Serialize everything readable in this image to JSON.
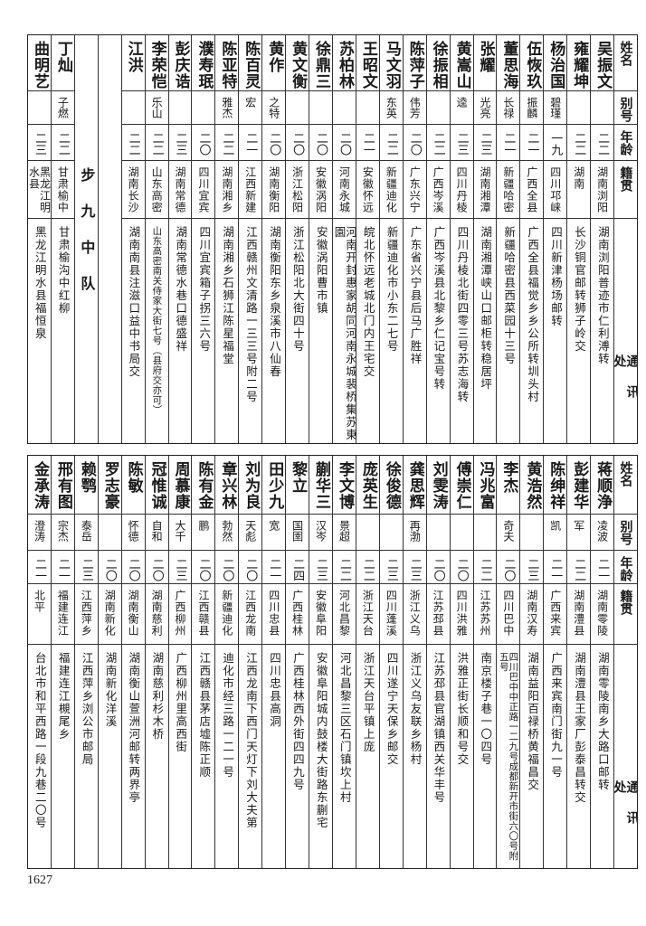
{
  "headers": {
    "name": "姓名",
    "alias": "别号",
    "age": "年龄",
    "native_place": "籍贯",
    "address": "通讯处"
  },
  "top_section": {
    "section_label": "步九中队",
    "people": [
      {
        "name": "吴振文",
        "alias": "",
        "age": "二二",
        "native_place": "湖南浏阳",
        "address": "湖南浏阳普迹市仁利溥转"
      },
      {
        "name": "雍耀坤",
        "alias": "",
        "age": "二二",
        "native_place": "湖南",
        "address": "长沙铜官邮转狮子岭交"
      },
      {
        "name": "杨治国",
        "alias": "碧瑾",
        "age": "一九",
        "native_place": "四川邛崃",
        "address": "四川新津杨场邮转"
      },
      {
        "name": "伍恢玖",
        "alias": "振麟",
        "age": "二一",
        "native_place": "广西全县",
        "address": "广西全县福觉乡乡公所转圳头村"
      },
      {
        "name": "董思海",
        "alias": "长禄",
        "age": "二一",
        "native_place": "新疆哈密",
        "address": "新疆哈密县西菜园十三号"
      },
      {
        "name": "张耀",
        "alias": "光亮",
        "age": "二三",
        "native_place": "湖南湘潭",
        "address": "湖南湘潭峡山口邮柜转稳居坪"
      },
      {
        "name": "黄嵩山",
        "alias": "逵",
        "age": "二三",
        "native_place": "四川丹棱",
        "address": "四川丹棱北街四零三号苏志海转"
      },
      {
        "name": "徐振相",
        "alias": "",
        "age": "二二",
        "native_place": "广西岑溪",
        "address": "广西岑溪县北黎乡仁记宝号转"
      },
      {
        "name": "陈萍子",
        "alias": "伟芳",
        "age": "二〇",
        "native_place": "广东兴宁",
        "address": "广东省兴宁县后马广胜祥"
      },
      {
        "name": "马文羽",
        "alias": "东英",
        "age": "二二",
        "native_place": "新疆迪化",
        "address": "新疆迪化市小东二七号"
      },
      {
        "name": "王昭文",
        "alias": "",
        "age": "二一",
        "native_place": "安徽怀远",
        "address": "皖北怀远老城北门内王宅交"
      },
      {
        "name": "苏柏林",
        "alias": "",
        "age": "二〇",
        "native_place": "河南永城",
        "address": "河南开封惠家胡同河南永城裴桥集苏東園"
      },
      {
        "name": "徐鼎三",
        "alias": "",
        "age": "二〇",
        "native_place": "安徽涡阳",
        "address": "安徽涡阳曹市镇"
      },
      {
        "name": "黄文衡",
        "alias": "",
        "age": "二〇",
        "native_place": "浙江松阳",
        "address": "浙江松阳北大街四十号"
      },
      {
        "name": "黄作",
        "alias": "之特",
        "age": "二〇",
        "native_place": "湖南衡阳",
        "address": "湖南衡阳东乡泉溪市八仙春"
      },
      {
        "name": "陈百灵",
        "alias": "宏",
        "age": "二一",
        "native_place": "江西新建",
        "address": "江西赣州文清路一三三号附二号"
      },
      {
        "name": "陈亚特",
        "alias": "雅杰",
        "age": "二二",
        "native_place": "湖南湘乡",
        "address": "湖南湘乡石狮江陈星福堂"
      },
      {
        "name": "濮寿珉",
        "alias": "",
        "age": "二〇",
        "native_place": "四川宜宾",
        "address": "四川宜宾箱子拐三六号"
      },
      {
        "name": "彭庆诰",
        "alias": "",
        "age": "二三",
        "native_place": "湖南常德",
        "address": "湖南常德水巷口德盛祥"
      },
      {
        "name": "李荣恺",
        "alias": "乐山",
        "age": "二二",
        "native_place": "山东高密",
        "address": "山东高密南关侍家大街七号（县府交亦可）"
      },
      {
        "name": "江洪",
        "alias": "",
        "age": "二二",
        "native_place": "湖南长沙",
        "address": "湖南南县注滋口益中书局交"
      }
    ],
    "people_after_section": [
      {
        "name": "丁灿",
        "alias": "子燃",
        "age": "二二",
        "native_place": "甘肃榆中",
        "address": "甘肃榆沟中红柳"
      },
      {
        "name": "曲明艺",
        "alias": "",
        "age": "二三",
        "native_place": "黑龙江明水县",
        "address": "黑龙江明水县福恒泉"
      }
    ]
  },
  "bottom_section": {
    "people": [
      {
        "name": "蒋顺浄",
        "alias": "凌波",
        "age": "二一",
        "native_place": "湖南零陵",
        "address": "湖南零陵南乡大路口邮转"
      },
      {
        "name": "彭建华",
        "alias": "军",
        "age": "二二",
        "native_place": "湖南澧县",
        "address": "湖南澧县王家厂彭泰昌转交"
      },
      {
        "name": "陈绅祥",
        "alias": "凯",
        "age": "二一",
        "native_place": "广西来宾",
        "address": "广西来宾南门街九一号"
      },
      {
        "name": "黄浩然",
        "alias": "",
        "age": "二三",
        "native_place": "湖南汉寿",
        "address": "湖南益阳百禄桥黄福昌交"
      },
      {
        "name": "李杰",
        "alias": "奇夫",
        "age": "二〇",
        "native_place": "四川巴中",
        "address": "四川巴中中正路一二九号成都新开市街六〇号附五号"
      },
      {
        "name": "冯兆富",
        "alias": "",
        "age": "二二",
        "native_place": "江苏苏州",
        "address": "南京楼子巷一〇四号"
      },
      {
        "name": "傅崇仁",
        "alias": "",
        "age": "二〇",
        "native_place": "四川洪雅",
        "address": "洪雅正街长顺和号交"
      },
      {
        "name": "刘雯涛",
        "alias": "",
        "age": "二〇",
        "native_place": "江苏邳县",
        "address": "江苏邳县官湖镇西关华丰号"
      },
      {
        "name": "龚思辉",
        "alias": "再渤",
        "age": "二三",
        "native_place": "浙江义乌",
        "address": "浙江义乌友联乡杨村"
      },
      {
        "name": "徐俊德",
        "alias": "",
        "age": "二三",
        "native_place": "四川蓬溪",
        "address": "四川遂宁天保乡邮交"
      },
      {
        "name": "庞英生",
        "alias": "",
        "age": "二二",
        "native_place": "浙江天台",
        "address": "浙江天台平镇上庞"
      },
      {
        "name": "李文博",
        "alias": "景超",
        "age": "二二",
        "native_place": "河北昌黎",
        "address": "河北昌黎三区石门镇坎上村"
      },
      {
        "name": "蒯华三",
        "alias": "汉岑",
        "age": "二三",
        "native_place": "安徽阜阳",
        "address": "安徽阜阳城内鼓楼大街路东蒯宅"
      },
      {
        "name": "黎立",
        "alias": "国圉",
        "age": "二四",
        "native_place": "广西桂林",
        "address": "广西桂林西外街四四九号"
      },
      {
        "name": "田少九",
        "alias": "宽",
        "age": "二一",
        "native_place": "四川忠县",
        "address": "四川忠县高洞"
      },
      {
        "name": "刘为良",
        "alias": "天彪",
        "age": "二〇",
        "native_place": "江西龙南",
        "address": "江西龙南下西门天灯下刘大夫第"
      },
      {
        "name": "章兴林",
        "alias": "勃然",
        "age": "二〇",
        "native_place": "新疆迪化",
        "address": "迪化市经三路一二一号"
      },
      {
        "name": "陈有金",
        "alias": "鹏",
        "age": "二〇",
        "native_place": "江西赣县",
        "address": "江西赣县茅店墟陈正顺"
      },
      {
        "name": "周慕康",
        "alias": "大千",
        "age": "二三",
        "native_place": "广西柳州",
        "address": "广西柳州里高西街"
      },
      {
        "name": "冠惟诚",
        "alias": "自和",
        "age": "二〇",
        "native_place": "湖南慈利",
        "address": "湖南慈利杉木桥"
      },
      {
        "name": "陈敏",
        "alias": "怀德",
        "age": "二〇",
        "native_place": "湖南衡山",
        "address": "湖南衡山萱洲河邮转两界亭"
      },
      {
        "name": "罗志豪",
        "alias": "",
        "age": "二〇",
        "native_place": "湖南新化",
        "address": "湖南新化洋溪"
      },
      {
        "name": "赖鹗",
        "alias": "泰岳",
        "age": "二三",
        "native_place": "江西萍乡",
        "address": "江西萍乡浏公市邮局"
      },
      {
        "name": "邢有图",
        "alias": "宗杰",
        "age": "二一",
        "native_place": "福建连江",
        "address": "福建连江槻尾乡"
      },
      {
        "name": "金承涛",
        "alias": "澄涛",
        "age": "二一",
        "native_place": "北平",
        "address": "台北市和平西路一段九巷二〇号"
      }
    ]
  },
  "page_number": "1627"
}
